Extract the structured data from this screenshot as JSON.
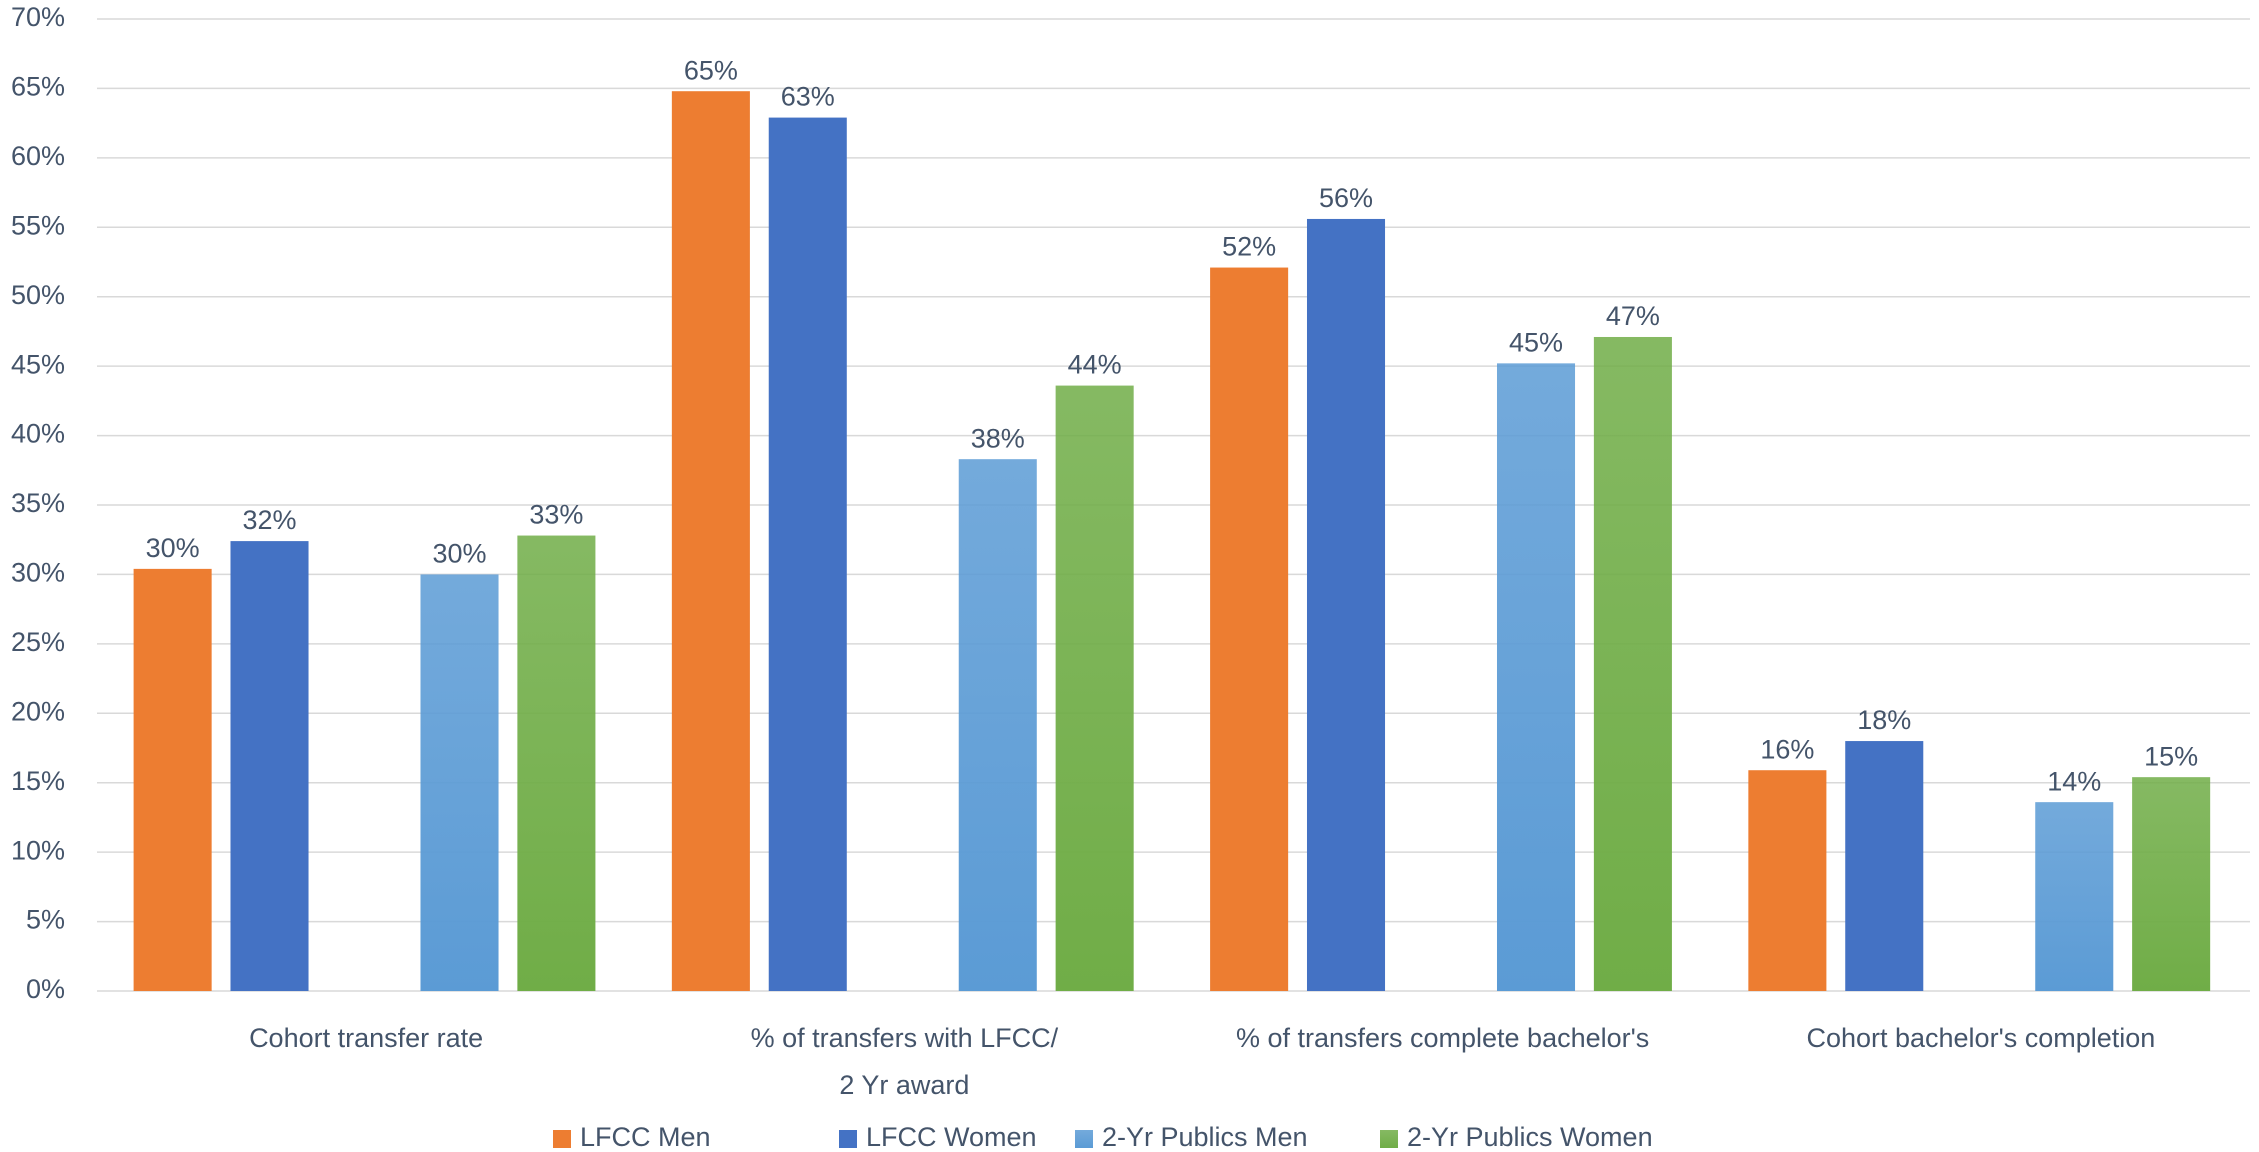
{
  "chart_data": {
    "type": "bar",
    "categories": [
      "Cohort transfer rate",
      "% of transfers with LFCC/\n2 Yr award",
      "% of transfers complete bachelor's",
      "Cohort bachelor's completion"
    ],
    "series": [
      {
        "name": "LFCC Men",
        "color": "#ED7D31",
        "values": [
          30.4,
          64.8,
          52.1,
          15.9
        ],
        "value_labels": [
          "30%",
          "65%",
          "52%",
          "16%"
        ]
      },
      {
        "name": "LFCC Women",
        "color": "#4472C4",
        "values": [
          32.4,
          62.9,
          55.6,
          18.0
        ],
        "value_labels": [
          "32%",
          "63%",
          "56%",
          "18%"
        ]
      },
      {
        "name": "2-Yr Publics Men",
        "color": "#5B9BD5",
        "values": [
          30.0,
          38.3,
          45.2,
          13.6
        ],
        "value_labels": [
          "30%",
          "38%",
          "45%",
          "14%"
        ]
      },
      {
        "name": "2-Yr Publics Women",
        "color": "#70AD47",
        "values": [
          32.8,
          43.6,
          47.1,
          15.4
        ],
        "value_labels": [
          "33%",
          "44%",
          "47%",
          "15%"
        ]
      }
    ],
    "ylim": [
      0,
      70
    ],
    "yticks": [
      {
        "value": 0,
        "label": "0%"
      },
      {
        "value": 5,
        "label": "5%"
      },
      {
        "value": 10,
        "label": "10%"
      },
      {
        "value": 15,
        "label": "15%"
      },
      {
        "value": 20,
        "label": "20%"
      },
      {
        "value": 25,
        "label": "25%"
      },
      {
        "value": 30,
        "label": "30%"
      },
      {
        "value": 35,
        "label": "35%"
      },
      {
        "value": 40,
        "label": "40%"
      },
      {
        "value": 45,
        "label": "45%"
      },
      {
        "value": 50,
        "label": "50%"
      },
      {
        "value": 55,
        "label": "55%"
      },
      {
        "value": 60,
        "label": "60%"
      },
      {
        "value": 65,
        "label": "65%"
      },
      {
        "value": 70,
        "label": "70%"
      }
    ],
    "grid": true,
    "legend": "bottom"
  }
}
